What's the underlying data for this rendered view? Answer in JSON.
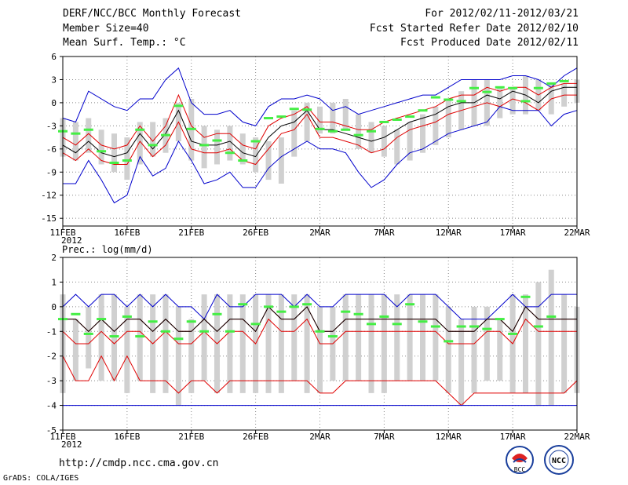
{
  "header": {
    "title": "DERF/NCC/BCC Monthly Forecast",
    "member_size": "Member Size=40",
    "variable": "Mean Surf. Temp.: °C",
    "period": "For 2012/02/11-2012/03/21",
    "refer_date": "Fcst Started Refer Date 2012/02/10",
    "produced_date": "Fcst Produced Date 2012/02/11"
  },
  "footer": {
    "url": "http://cmdp.ncc.cma.gov.cn",
    "credit": "GrADS: COLA/IGES",
    "logo_bcc": "BCC",
    "logo_ncc": "NCC"
  },
  "colors": {
    "box": "#d0d0d0",
    "mean": "#000000",
    "spread": "#e00000",
    "extreme": "#0000cc",
    "obs": "#44ee44",
    "grid": "#888888"
  },
  "chart_data": [
    {
      "type": "line",
      "title": "Mean Surf. Temp.: °C",
      "ylim": [
        -16,
        6
      ],
      "yticks": [
        6,
        3,
        0,
        -3,
        -6,
        -9,
        -12,
        -15
      ],
      "xlim": [
        0,
        40
      ],
      "xticks": [
        {
          "x": 0,
          "label": "11FEB"
        },
        {
          "x": 5,
          "label": "16FEB"
        },
        {
          "x": 10,
          "label": "21FEB"
        },
        {
          "x": 15,
          "label": "26FEB"
        },
        {
          "x": 20,
          "label": "2MAR"
        },
        {
          "x": 25,
          "label": "7MAR"
        },
        {
          "x": 30,
          "label": "12MAR"
        },
        {
          "x": 35,
          "label": "17MAR"
        },
        {
          "x": 40,
          "label": "22MAR"
        }
      ],
      "year_label": "2012",
      "box_low": [
        -7,
        -7.5,
        -6.5,
        -8,
        -9,
        -10,
        -8,
        -7,
        -6.5,
        -5,
        -7.5,
        -8.5,
        -8,
        -7.5,
        -8,
        -9,
        -10,
        -10.5,
        -7,
        -5,
        -4,
        -4,
        -3.5,
        -6,
        -6.5,
        -7,
        -8,
        -7.5,
        -6.5,
        -5.5,
        -4.5,
        -3.5,
        -3,
        -3,
        -2,
        -1.5,
        -1.5,
        -1,
        -1.5,
        -0.5,
        0
      ],
      "box_high": [
        -2,
        -2.5,
        -2,
        -3.5,
        -4,
        -4.5,
        -2.5,
        -2.5,
        -2,
        0,
        0.5,
        -3,
        -3.5,
        -3,
        -4,
        -4.5,
        -5,
        -4.5,
        -1,
        0,
        -0.5,
        0,
        0.5,
        -1.5,
        -2.5,
        -3,
        -3.5,
        -2.5,
        -1.5,
        -0.5,
        0.5,
        1.5,
        3,
        3,
        2,
        2,
        3.5,
        3,
        2.5,
        2.5,
        3
      ],
      "obs": [
        -3.7,
        -4.0,
        -3.5,
        -6.3,
        -7.8,
        -7.5,
        -3.5,
        -5.5,
        -4.2,
        -0.4,
        -3.4,
        -5.5,
        -4.9,
        -6.5,
        -7.5,
        -5.0,
        -2.0,
        -1.8,
        -0.8,
        -0.9,
        -3.4,
        -3.7,
        -3.5,
        -4.2,
        -3.7,
        -2.5,
        -2.2,
        -1.8,
        -1.0,
        0.7,
        0.4,
        0.2,
        1.9,
        1.4,
        2.0,
        1.9,
        0.2,
        1.9,
        2.5,
        2.8
      ],
      "series": [
        {
          "name": "max",
          "color": "#0000cc",
          "values": [
            -2,
            -2.5,
            1.5,
            0.5,
            -0.5,
            -1,
            0.5,
            0.5,
            3,
            4.5,
            0,
            -1.5,
            -1.5,
            -1,
            -2.5,
            -3,
            -0.5,
            0.5,
            0.5,
            1,
            0.5,
            -1,
            -0.5,
            -1.5,
            -1,
            -0.5,
            0,
            0.5,
            1,
            1,
            2,
            3,
            3,
            3,
            3,
            3.5,
            3.5,
            3,
            2,
            3.5,
            4.5
          ]
        },
        {
          "name": "upper",
          "color": "#e00000",
          "values": [
            -4.5,
            -5.5,
            -4,
            -5.5,
            -6,
            -5.5,
            -3,
            -5,
            -3,
            1,
            -3,
            -4.5,
            -4,
            -4,
            -5.5,
            -6,
            -3,
            -2,
            -1.5,
            -0.5,
            -2.5,
            -2.5,
            -3,
            -3.5,
            -3.5,
            -2.5,
            -2,
            -1.5,
            -1,
            -0.5,
            0.5,
            1,
            1,
            2,
            1.5,
            2,
            2,
            1,
            2,
            2.5,
            2.5
          ]
        },
        {
          "name": "mean",
          "color": "#000000",
          "values": [
            -5.5,
            -6.5,
            -5,
            -6.5,
            -7,
            -6.5,
            -4,
            -6,
            -4,
            -1,
            -5,
            -5.5,
            -5.5,
            -5,
            -6.5,
            -7,
            -4.5,
            -3,
            -2.5,
            -1,
            -3.5,
            -3.5,
            -4,
            -4.5,
            -5,
            -4.5,
            -3.5,
            -2.5,
            -2,
            -1.5,
            -0.5,
            0,
            0,
            1,
            0.5,
            1.5,
            1,
            0,
            1.5,
            2,
            2
          ]
        },
        {
          "name": "lower",
          "color": "#e00000",
          "values": [
            -6.5,
            -7.5,
            -6,
            -7.5,
            -8,
            -8,
            -5,
            -7,
            -5.5,
            -2.5,
            -6,
            -6.5,
            -6.5,
            -6,
            -7.5,
            -8,
            -6,
            -4,
            -3.5,
            -1.5,
            -4.5,
            -4.5,
            -5,
            -5.5,
            -6.5,
            -6,
            -4.5,
            -3.5,
            -3,
            -2.5,
            -1.5,
            -1,
            -0.5,
            0,
            -0.5,
            0.5,
            0,
            -1,
            0.5,
            1,
            1
          ]
        },
        {
          "name": "min",
          "color": "#0000cc",
          "values": [
            -10.5,
            -10.5,
            -7.5,
            -10,
            -13,
            -12,
            -7,
            -9.5,
            -8.5,
            -5,
            -7.5,
            -10.5,
            -10,
            -9,
            -11,
            -11,
            -8.5,
            -7,
            -6,
            -5,
            -6,
            -6,
            -6.5,
            -9,
            -11,
            -10,
            -8,
            -6.5,
            -6,
            -5,
            -4,
            -3.5,
            -3,
            -2.5,
            -0.5,
            -1,
            -1,
            -1,
            -3,
            -1.5,
            -1
          ]
        }
      ]
    },
    {
      "type": "line",
      "title": "Prec.: log(mm/d)",
      "ylim": [
        -5,
        2
      ],
      "yticks": [
        2,
        1,
        0,
        -1,
        -2,
        -3,
        -4,
        -5
      ],
      "xlim": [
        0,
        40
      ],
      "xticks": [
        {
          "x": 0,
          "label": "11FEB"
        },
        {
          "x": 5,
          "label": "16FEB"
        },
        {
          "x": 10,
          "label": "21FEB"
        },
        {
          "x": 15,
          "label": "26FEB"
        },
        {
          "x": 20,
          "label": "2MAR"
        },
        {
          "x": 25,
          "label": "7MAR"
        },
        {
          "x": 30,
          "label": "12MAR"
        },
        {
          "x": 35,
          "label": "17MAR"
        },
        {
          "x": 40,
          "label": "22MAR"
        }
      ],
      "year_label": "2012",
      "box_low": [
        -3.5,
        -3,
        -2.5,
        -3,
        -3,
        -3.5,
        -3,
        -3.5,
        -3.5,
        -4,
        -3.5,
        -3,
        -3.5,
        -3.5,
        -3.5,
        -3.5,
        -3.5,
        -3.5,
        -3,
        -3.5,
        -3.5,
        -3,
        -3,
        -3,
        -3.5,
        -3.5,
        -3,
        -3,
        -3,
        -3,
        -3.5,
        -4,
        -3.5,
        -3,
        -3,
        -3.5,
        -3.5,
        -4,
        -4,
        -3.5,
        -3.5
      ],
      "box_high": [
        0.5,
        -0.5,
        0,
        0.5,
        0.5,
        0,
        0.5,
        0.5,
        0.5,
        0,
        -0.5,
        0.5,
        0.5,
        0.5,
        0.5,
        0.5,
        0.5,
        0.5,
        0.5,
        0.5,
        0,
        0,
        0.5,
        0.5,
        0.5,
        0.5,
        0.5,
        0.5,
        0.5,
        0.5,
        0,
        -0.5,
        0,
        0,
        -0.5,
        0.5,
        0.5,
        1,
        1.5,
        0.5,
        0
      ],
      "obs": [
        -0.5,
        -0.3,
        -1.1,
        -0.5,
        -1.2,
        -0.4,
        -1.2,
        -0.6,
        -1.0,
        -1.3,
        -0.6,
        -1.0,
        -0.3,
        -1.0,
        0.1,
        -0.7,
        0.0,
        -0.2,
        0.0,
        0.1,
        -1.0,
        -1.2,
        -0.2,
        -0.3,
        -0.7,
        -0.4,
        -0.7,
        0.1,
        -0.6,
        -0.8,
        -1.4,
        -0.8,
        -0.8,
        -0.9,
        -0.5,
        -1.1,
        0.4,
        -0.8,
        -0.4
      ],
      "series": [
        {
          "name": "max",
          "color": "#0000cc",
          "values": [
            0,
            0.5,
            0,
            0.5,
            0.5,
            0,
            0.5,
            0,
            0.5,
            0,
            0,
            -0.5,
            0.5,
            0,
            0,
            0.5,
            0.5,
            0.5,
            0,
            0.5,
            0,
            0,
            0.5,
            0.5,
            0.5,
            0.5,
            0,
            0.5,
            0.5,
            0.5,
            0,
            -0.5,
            -0.5,
            -0.5,
            0,
            0.5,
            0,
            0,
            0.5,
            0.5,
            0.5
          ]
        },
        {
          "name": "upper",
          "color": "#e00000",
          "values": [
            -0.5,
            -0.5,
            -1,
            -0.5,
            -1,
            -0.5,
            -0.5,
            -1,
            -0.5,
            -1,
            -1,
            -0.5,
            -1,
            -0.5,
            -0.5,
            -1,
            0,
            -0.5,
            -0.5,
            0,
            -1,
            -1,
            -0.5,
            -0.5,
            -0.5,
            -0.5,
            -0.5,
            -0.5,
            -0.5,
            -0.5,
            -1,
            -1,
            -1,
            -0.5,
            -0.5,
            -1,
            0,
            -0.5,
            -0.5,
            -0.5,
            -0.5
          ]
        },
        {
          "name": "mean",
          "color": "#000000",
          "values": [
            -0.5,
            -0.5,
            -1,
            -0.5,
            -1,
            -0.5,
            -0.5,
            -1,
            -0.5,
            -1,
            -1,
            -0.5,
            -1,
            -0.5,
            -0.5,
            -1,
            0,
            -0.5,
            -0.5,
            0,
            -1,
            -1,
            -0.5,
            -0.5,
            -0.5,
            -0.5,
            -0.5,
            -0.5,
            -0.5,
            -0.5,
            -1,
            -1,
            -1,
            -0.5,
            -0.5,
            -1,
            0,
            -0.5,
            -0.5,
            -0.5,
            -0.5
          ]
        },
        {
          "name": "lower",
          "color": "#e00000",
          "values": [
            -1,
            -1.5,
            -1.5,
            -1,
            -1.5,
            -1,
            -1,
            -1.5,
            -1,
            -1.5,
            -1.5,
            -1,
            -1.5,
            -1,
            -1,
            -1.5,
            -0.5,
            -1,
            -1,
            -0.5,
            -1.5,
            -1.5,
            -1,
            -1,
            -1,
            -1,
            -1,
            -1,
            -1,
            -1,
            -1.5,
            -1.5,
            -1.5,
            -1,
            -1,
            -1.5,
            -0.5,
            -1,
            -1,
            -1,
            -1
          ]
        },
        {
          "name": "low",
          "color": "#e00000",
          "values": [
            -2,
            -3,
            -3,
            -2,
            -3,
            -2,
            -3,
            -3,
            -3,
            -3.5,
            -3,
            -3,
            -3.5,
            -3,
            -3,
            -3,
            -3,
            -3,
            -3,
            -3,
            -3.5,
            -3.5,
            -3,
            -3,
            -3,
            -3,
            -3,
            -3,
            -3,
            -3,
            -3.5,
            -4,
            -3.5,
            -3.5,
            -3.5,
            -3.5,
            -3.5,
            -3.5,
            -3.5,
            -3.5,
            -3
          ]
        },
        {
          "name": "min",
          "color": "#0000cc",
          "values": [
            -4,
            -4,
            -4,
            -4,
            -4,
            -4,
            -4,
            -4,
            -4,
            -4,
            -4,
            -4,
            -4,
            -4,
            -4,
            -4,
            -4,
            -4,
            -4,
            -4,
            -4,
            -4,
            -4,
            -4,
            -4,
            -4,
            -4,
            -4,
            -4,
            -4,
            -4,
            -4,
            -4,
            -4,
            -4,
            -4,
            -4,
            -4,
            -4,
            -4,
            -4
          ]
        }
      ]
    }
  ]
}
